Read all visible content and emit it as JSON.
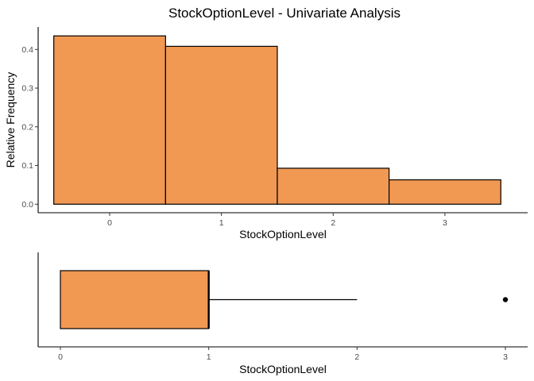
{
  "chart_data": [
    {
      "type": "bar",
      "title": "StockOptionLevel - Univariate Analysis",
      "xlabel": "StockOptionLevel",
      "ylabel": "Relative Frequency",
      "categories": [
        "0",
        "1",
        "2",
        "3"
      ],
      "x": [
        0,
        1,
        2,
        3
      ],
      "values": [
        0.435,
        0.408,
        0.093,
        0.063
      ],
      "xlim": [
        -0.64,
        3.74
      ],
      "ylim": [
        -0.022,
        0.458
      ],
      "xticks": [
        0,
        1,
        2,
        3
      ],
      "yticks": [
        0.0,
        0.1,
        0.2,
        0.3,
        0.4
      ],
      "ytick_labels": [
        "0.0",
        "0.1",
        "0.2",
        "0.3",
        "0.4"
      ],
      "bar_color": "#f19853",
      "grid": false
    },
    {
      "type": "boxplot",
      "xlabel": "StockOptionLevel",
      "xlim": [
        -0.15,
        3.15
      ],
      "xticks": [
        0,
        1,
        2,
        3
      ],
      "xtick_labels": [
        "0",
        "1",
        "2",
        "3"
      ],
      "box": {
        "min": 0,
        "q1": 0,
        "median": 1,
        "q3": 1,
        "whisker_high": 2
      },
      "outliers": [
        3
      ],
      "box_color": "#f19853",
      "grid": false
    }
  ]
}
